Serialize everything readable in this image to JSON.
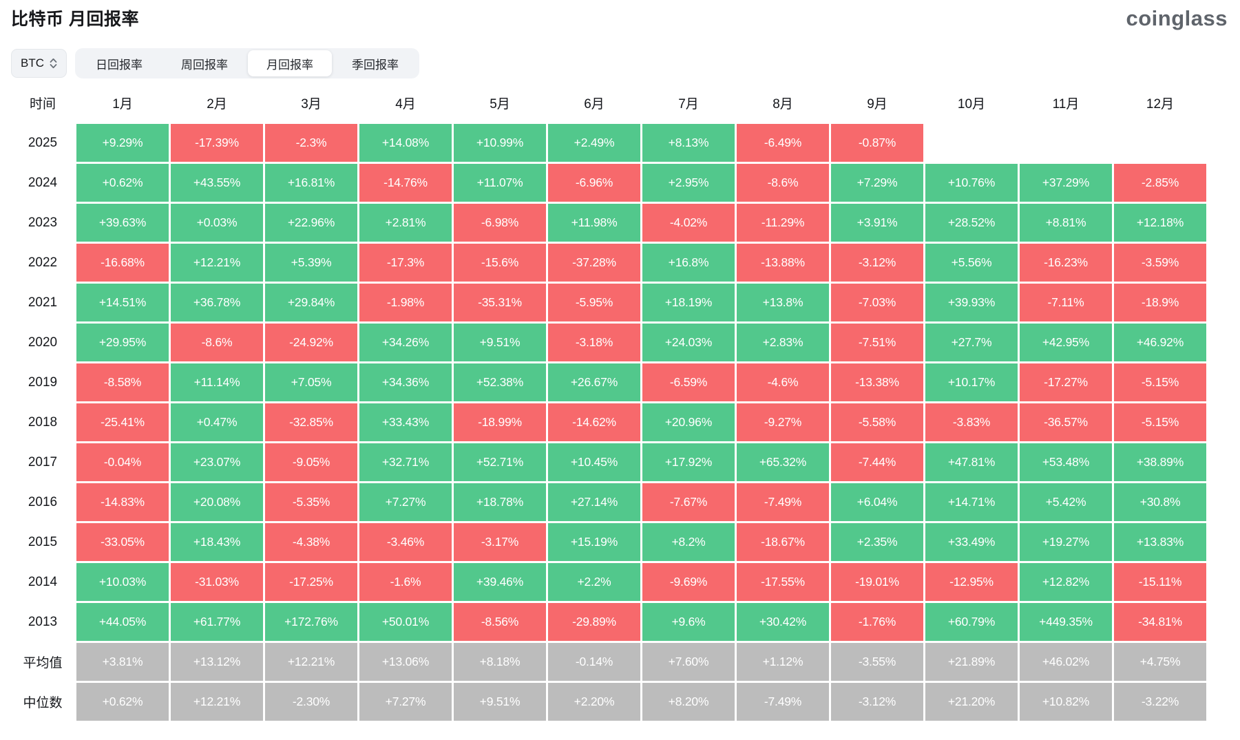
{
  "page": {
    "title": "比特币 月回报率",
    "logo": "coinglass"
  },
  "controls": {
    "coin_selector": {
      "value": "BTC"
    },
    "tabs": [
      {
        "id": "daily",
        "label": "日回报率",
        "active": false
      },
      {
        "id": "weekly",
        "label": "周回报率",
        "active": false
      },
      {
        "id": "monthly",
        "label": "月回报率",
        "active": true
      },
      {
        "id": "quarterly",
        "label": "季回报率",
        "active": false
      }
    ]
  },
  "colors": {
    "positive": "#52c88c",
    "negative": "#f7696c",
    "summary": "#bcbcbc"
  },
  "chart_data": {
    "type": "heatmap",
    "title": "比特币 月回报率",
    "columns": [
      "时间",
      "1月",
      "2月",
      "3月",
      "4月",
      "5月",
      "6月",
      "7月",
      "8月",
      "9月",
      "10月",
      "11月",
      "12月"
    ],
    "rows": [
      {
        "label": "2025",
        "type": "data",
        "cells": [
          "+9.29%",
          "-17.39%",
          "-2.3%",
          "+14.08%",
          "+10.99%",
          "+2.49%",
          "+8.13%",
          "-6.49%",
          "-0.87%",
          null,
          null,
          null
        ]
      },
      {
        "label": "2024",
        "type": "data",
        "cells": [
          "+0.62%",
          "+43.55%",
          "+16.81%",
          "-14.76%",
          "+11.07%",
          "-6.96%",
          "+2.95%",
          "-8.6%",
          "+7.29%",
          "+10.76%",
          "+37.29%",
          "-2.85%"
        ]
      },
      {
        "label": "2023",
        "type": "data",
        "cells": [
          "+39.63%",
          "+0.03%",
          "+22.96%",
          "+2.81%",
          "-6.98%",
          "+11.98%",
          "-4.02%",
          "-11.29%",
          "+3.91%",
          "+28.52%",
          "+8.81%",
          "+12.18%"
        ]
      },
      {
        "label": "2022",
        "type": "data",
        "cells": [
          "-16.68%",
          "+12.21%",
          "+5.39%",
          "-17.3%",
          "-15.6%",
          "-37.28%",
          "+16.8%",
          "-13.88%",
          "-3.12%",
          "+5.56%",
          "-16.23%",
          "-3.59%"
        ]
      },
      {
        "label": "2021",
        "type": "data",
        "cells": [
          "+14.51%",
          "+36.78%",
          "+29.84%",
          "-1.98%",
          "-35.31%",
          "-5.95%",
          "+18.19%",
          "+13.8%",
          "-7.03%",
          "+39.93%",
          "-7.11%",
          "-18.9%"
        ]
      },
      {
        "label": "2020",
        "type": "data",
        "cells": [
          "+29.95%",
          "-8.6%",
          "-24.92%",
          "+34.26%",
          "+9.51%",
          "-3.18%",
          "+24.03%",
          "+2.83%",
          "-7.51%",
          "+27.7%",
          "+42.95%",
          "+46.92%"
        ]
      },
      {
        "label": "2019",
        "type": "data",
        "cells": [
          "-8.58%",
          "+11.14%",
          "+7.05%",
          "+34.36%",
          "+52.38%",
          "+26.67%",
          "-6.59%",
          "-4.6%",
          "-13.38%",
          "+10.17%",
          "-17.27%",
          "-5.15%"
        ]
      },
      {
        "label": "2018",
        "type": "data",
        "cells": [
          "-25.41%",
          "+0.47%",
          "-32.85%",
          "+33.43%",
          "-18.99%",
          "-14.62%",
          "+20.96%",
          "-9.27%",
          "-5.58%",
          "-3.83%",
          "-36.57%",
          "-5.15%"
        ]
      },
      {
        "label": "2017",
        "type": "data",
        "cells": [
          "-0.04%",
          "+23.07%",
          "-9.05%",
          "+32.71%",
          "+52.71%",
          "+10.45%",
          "+17.92%",
          "+65.32%",
          "-7.44%",
          "+47.81%",
          "+53.48%",
          "+38.89%"
        ]
      },
      {
        "label": "2016",
        "type": "data",
        "cells": [
          "-14.83%",
          "+20.08%",
          "-5.35%",
          "+7.27%",
          "+18.78%",
          "+27.14%",
          "-7.67%",
          "-7.49%",
          "+6.04%",
          "+14.71%",
          "+5.42%",
          "+30.8%"
        ]
      },
      {
        "label": "2015",
        "type": "data",
        "cells": [
          "-33.05%",
          "+18.43%",
          "-4.38%",
          "-3.46%",
          "-3.17%",
          "+15.19%",
          "+8.2%",
          "-18.67%",
          "+2.35%",
          "+33.49%",
          "+19.27%",
          "+13.83%"
        ]
      },
      {
        "label": "2014",
        "type": "data",
        "cells": [
          "+10.03%",
          "-31.03%",
          "-17.25%",
          "-1.6%",
          "+39.46%",
          "+2.2%",
          "-9.69%",
          "-17.55%",
          "-19.01%",
          "-12.95%",
          "+12.82%",
          "-15.11%"
        ]
      },
      {
        "label": "2013",
        "type": "data",
        "cells": [
          "+44.05%",
          "+61.77%",
          "+172.76%",
          "+50.01%",
          "-8.56%",
          "-29.89%",
          "+9.6%",
          "+30.42%",
          "-1.76%",
          "+60.79%",
          "+449.35%",
          "-34.81%"
        ]
      },
      {
        "label": "平均值",
        "type": "summary",
        "cells": [
          "+3.81%",
          "+13.12%",
          "+12.21%",
          "+13.06%",
          "+8.18%",
          "-0.14%",
          "+7.60%",
          "+1.12%",
          "-3.55%",
          "+21.89%",
          "+46.02%",
          "+4.75%"
        ]
      },
      {
        "label": "中位数",
        "type": "summary",
        "cells": [
          "+0.62%",
          "+12.21%",
          "-2.30%",
          "+7.27%",
          "+9.51%",
          "+2.20%",
          "+8.20%",
          "-7.49%",
          "-3.12%",
          "+21.20%",
          "+10.82%",
          "-3.22%"
        ]
      }
    ]
  }
}
